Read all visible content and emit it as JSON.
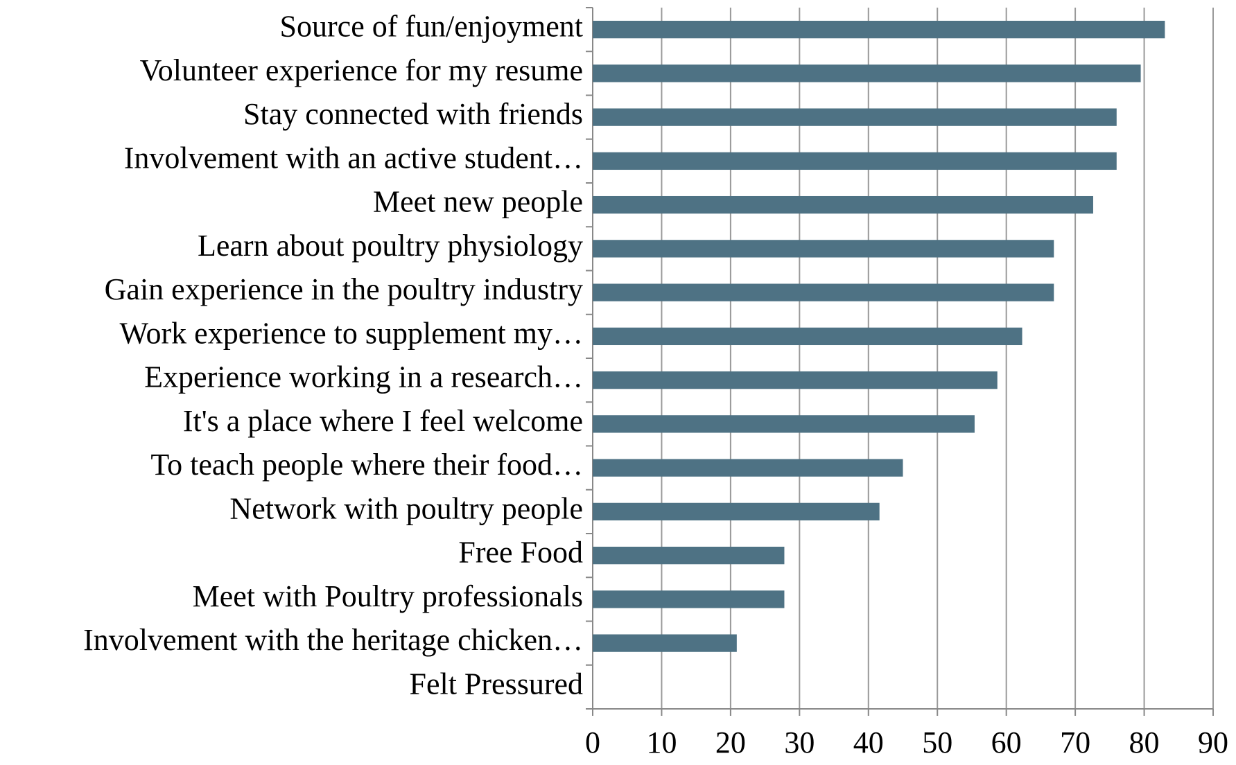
{
  "chart_data": {
    "type": "hbar",
    "categories": [
      "Source of fun/enjoyment",
      "Volunteer experience for my resume",
      "Stay connected with friends",
      "Involvement with an active student…",
      "Meet new people",
      "Learn about poultry physiology",
      "Gain experience in the poultry industry",
      "Work experience to supplement my…",
      "Experience working in a research…",
      "It's a place where I feel welcome",
      "To teach people where their food…",
      "Network with poultry people",
      "Free Food",
      "Meet with Poultry professionals",
      "Involvement with the heritage chicken…",
      "Felt Pressured"
    ],
    "values": [
      83,
      79.5,
      76,
      76,
      72.6,
      66.9,
      66.9,
      62.3,
      58.7,
      55.4,
      45,
      41.6,
      27.8,
      27.8,
      20.9,
      0
    ],
    "color": "#4e7284",
    "xlim": [
      0,
      90
    ],
    "xticks": [
      0,
      10,
      20,
      30,
      40,
      50,
      60,
      70,
      80,
      90
    ],
    "grid": true
  }
}
